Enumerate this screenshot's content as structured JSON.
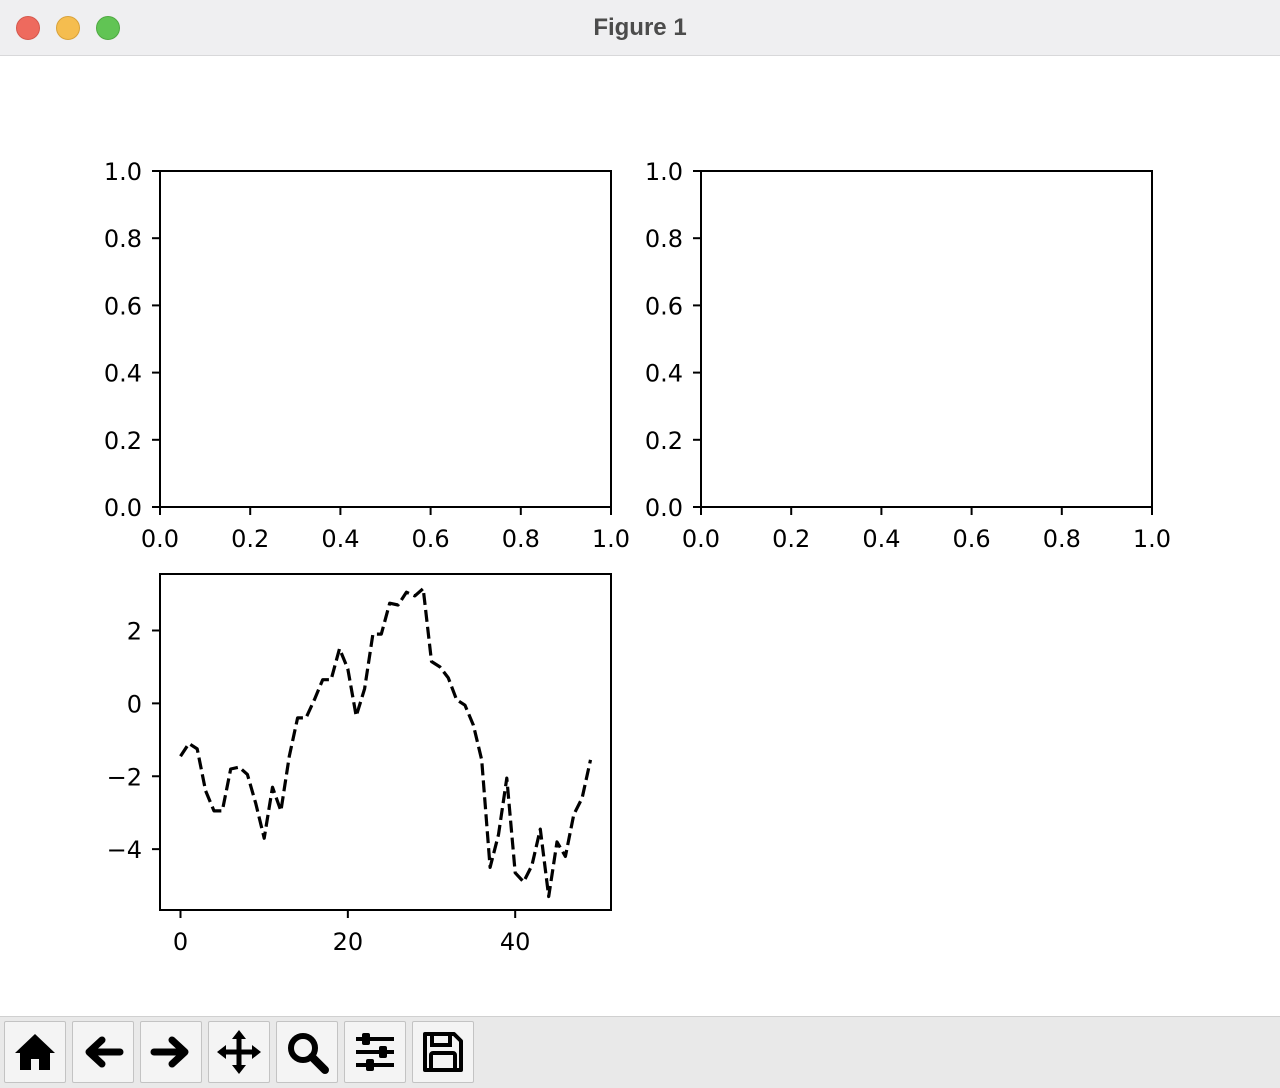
{
  "window": {
    "title": "Figure 1"
  },
  "toolbar": {
    "buttons": [
      {
        "name": "home-button",
        "icon": "home-icon"
      },
      {
        "name": "back-button",
        "icon": "arrow-left-icon"
      },
      {
        "name": "forward-button",
        "icon": "arrow-right-icon"
      },
      {
        "name": "pan-button",
        "icon": "move-icon"
      },
      {
        "name": "zoom-button",
        "icon": "magnifier-icon"
      },
      {
        "name": "configure-subplots-button",
        "icon": "sliders-icon"
      },
      {
        "name": "save-button",
        "icon": "floppy-disk-icon"
      }
    ]
  },
  "chart_data": [
    {
      "type": "line",
      "title": "",
      "xlabel": "",
      "ylabel": "",
      "xlim": [
        0,
        1
      ],
      "ylim": [
        0,
        1
      ],
      "xticks": [
        "0.0",
        "0.2",
        "0.4",
        "0.6",
        "0.8",
        "1.0"
      ],
      "yticks": [
        "0.0",
        "0.2",
        "0.4",
        "0.6",
        "0.8",
        "1.0"
      ],
      "series": []
    },
    {
      "type": "line",
      "title": "",
      "xlabel": "",
      "ylabel": "",
      "xlim": [
        0,
        1
      ],
      "ylim": [
        0,
        1
      ],
      "xticks": [
        "0.0",
        "0.2",
        "0.4",
        "0.6",
        "0.8",
        "1.0"
      ],
      "yticks": [
        "0.0",
        "0.2",
        "0.4",
        "0.6",
        "0.8",
        "1.0"
      ],
      "series": []
    },
    {
      "type": "line",
      "title": "",
      "xlabel": "",
      "ylabel": "",
      "xlim": [
        -2.45,
        51.45
      ],
      "ylim": [
        -5.67,
        3.55
      ],
      "xticks": [
        "0",
        "20",
        "40"
      ],
      "xtick_values": [
        0,
        20,
        40
      ],
      "yticks": [
        "2",
        "0",
        "−2",
        "−4"
      ],
      "ytick_values": [
        2,
        0,
        -2,
        -4
      ],
      "line_style": "dashed",
      "line_color": "#000000",
      "series": [
        {
          "x": [
            0,
            1,
            2,
            3,
            4,
            5,
            6,
            7,
            8,
            9,
            10,
            11,
            12,
            13,
            14,
            15,
            16,
            17,
            18,
            19,
            20,
            21,
            22,
            23,
            24,
            25,
            26,
            27,
            28,
            29,
            30,
            31,
            32,
            33,
            34,
            35,
            36,
            37,
            38,
            39,
            40,
            41,
            42,
            43,
            44,
            45,
            46,
            47,
            48,
            49
          ],
          "values": [
            -1.45,
            -1.1,
            -1.25,
            -2.4,
            -2.95,
            -2.95,
            -1.8,
            -1.75,
            -1.95,
            -2.75,
            -3.7,
            -2.3,
            -2.95,
            -1.45,
            -0.4,
            -0.4,
            0.1,
            0.65,
            0.65,
            1.5,
            0.95,
            -0.35,
            0.4,
            1.9,
            1.9,
            2.75,
            2.7,
            3.05,
            2.95,
            3.15,
            1.15,
            1.0,
            0.7,
            0.1,
            -0.05,
            -0.6,
            -1.55,
            -4.5,
            -3.6,
            -2.05,
            -4.65,
            -4.9,
            -4.45,
            -3.45,
            -5.3,
            -3.8,
            -4.2,
            -3.05,
            -2.6,
            -1.55
          ]
        }
      ]
    }
  ]
}
